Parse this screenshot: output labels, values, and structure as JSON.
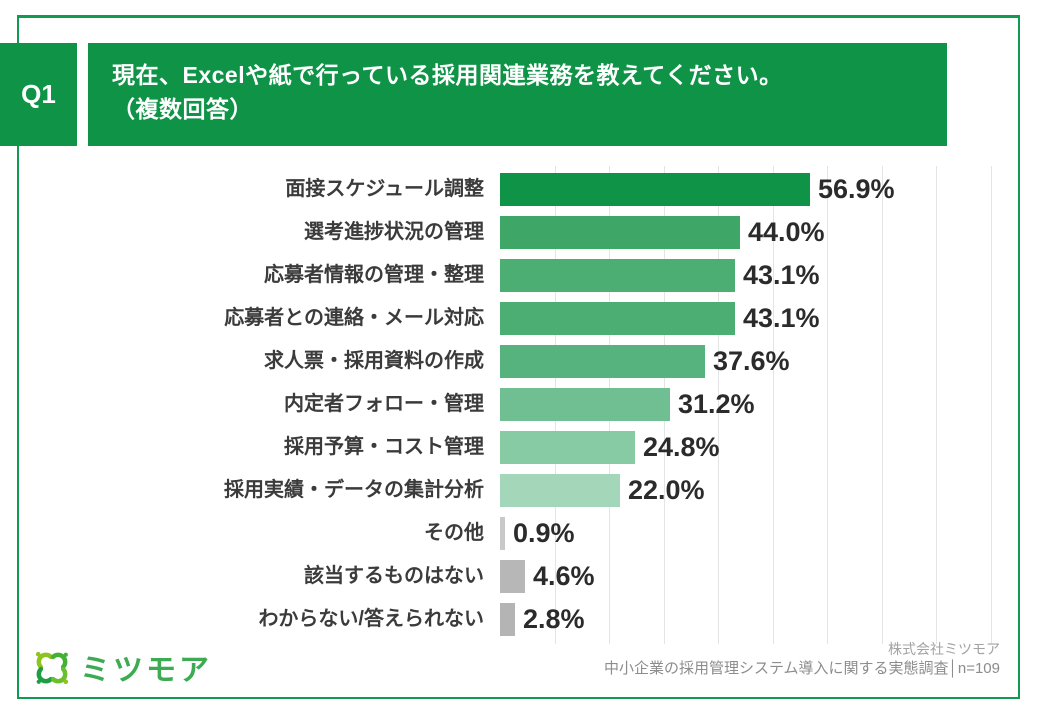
{
  "header": {
    "q_label": "Q1",
    "title_line1": "現在、Excelや紙で行っている採用関連業務を教えてください。",
    "title_line2": "（複数回答）"
  },
  "chart_data": {
    "type": "bar",
    "orientation": "horizontal",
    "title": "現在、Excelや紙で行っている採用関連業務（複数回答）",
    "categories": [
      "面接スケジュール調整",
      "選考進捗状況の管理",
      "応募者情報の管理・整理",
      "応募者との連絡・メール対応",
      "求人票・採用資料の作成",
      "内定者フォロー・管理",
      "採用予算・コスト管理",
      "採用実績・データの集計分析",
      "その他",
      "該当するものはない",
      "わからない/答えられない"
    ],
    "values": [
      56.9,
      44.0,
      43.1,
      43.1,
      37.6,
      31.2,
      24.8,
      22.0,
      0.9,
      4.6,
      2.8
    ],
    "value_labels": [
      "56.9%",
      "44.0%",
      "43.1%",
      "43.1%",
      "37.6%",
      "31.2%",
      "24.8%",
      "22.0%",
      "0.9%",
      "4.6%",
      "2.8%"
    ],
    "bar_colors": [
      "#0e9347",
      "#3ea768",
      "#4cae73",
      "#4cae73",
      "#57b37d",
      "#70bf92",
      "#87cba4",
      "#a4d7ba",
      "#c9c9c9",
      "#b7b7b7",
      "#b4b4b4"
    ],
    "xlabel": "",
    "ylabel": "",
    "xlim": [
      0,
      90
    ],
    "gridline_interval": 10,
    "grid": true,
    "legend": "none"
  },
  "footer": {
    "logo_text": "ミツモア",
    "source_line1": "株式会社ミツモア",
    "source_line2": "中小企業の採用管理システム導入に関する実態調査│n=109"
  },
  "colors": {
    "brand_green": "#0e9347",
    "frame_green": "#129b50",
    "gridline_gray": "#e4e4e4",
    "logo_green": "#3cab52",
    "logo_light_green": "#8fc31f",
    "source_gray": "#8c8c8c"
  }
}
